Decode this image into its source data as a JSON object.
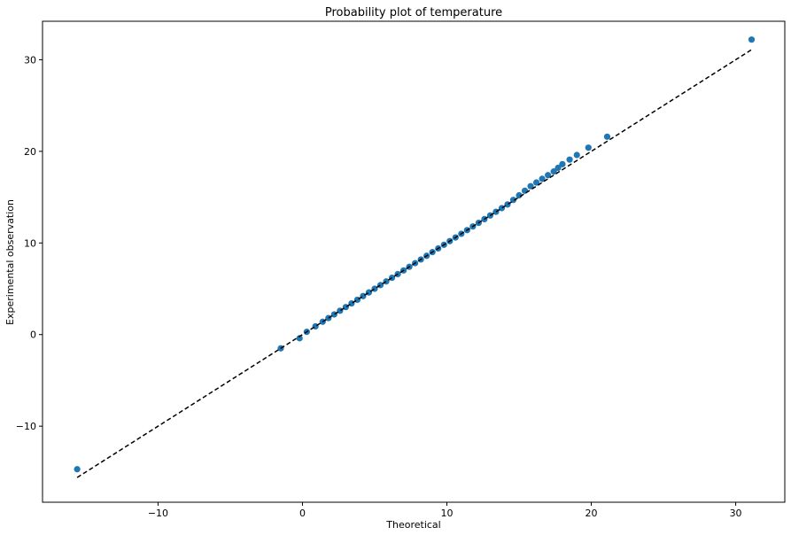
{
  "chart_data": {
    "type": "scatter",
    "title": "Probability plot of temperature",
    "xlabel": "Theoretical",
    "ylabel": "Experimental observation",
    "xlim": [
      -18.0,
      33.4
    ],
    "ylim": [
      -18.3,
      34.2
    ],
    "xticks": [
      -10,
      0,
      10,
      20,
      30
    ],
    "yticks": [
      -10,
      0,
      10,
      20,
      30
    ],
    "xtick_labels": [
      "−10",
      "0",
      "10",
      "20",
      "30"
    ],
    "ytick_labels": [
      "−10",
      "0",
      "10",
      "20",
      "30"
    ],
    "grid": false,
    "legend": false,
    "point_color": "#1f77b4",
    "line_color": "#000000",
    "reference_line": {
      "x": [
        -15.6,
        31.2
      ],
      "y": [
        -15.6,
        31.2
      ],
      "style": "dashed"
    },
    "series": [
      {
        "x": [
          -15.6,
          -1.5,
          -0.2,
          0.3,
          0.9,
          1.4,
          1.8,
          2.2,
          2.6,
          3.0,
          3.4,
          3.8,
          4.2,
          4.6,
          5.0,
          5.4,
          5.8,
          6.2,
          6.6,
          7.0,
          7.4,
          7.8,
          8.2,
          8.6,
          9.0,
          9.4,
          9.8,
          10.2,
          10.6,
          11.0,
          11.4,
          11.8,
          12.2,
          12.6,
          13.0,
          13.4,
          13.8,
          14.2,
          14.6,
          15.0,
          15.4,
          15.8,
          16.2,
          16.6,
          17.0,
          17.4,
          17.7,
          18.0,
          18.5,
          19.0,
          19.8,
          21.1,
          31.1
        ],
        "y": [
          -14.7,
          -1.5,
          -0.4,
          0.3,
          0.9,
          1.4,
          1.8,
          2.2,
          2.6,
          3.0,
          3.4,
          3.8,
          4.2,
          4.6,
          5.0,
          5.4,
          5.8,
          6.2,
          6.6,
          7.0,
          7.4,
          7.8,
          8.2,
          8.6,
          9.0,
          9.4,
          9.8,
          10.2,
          10.6,
          11.0,
          11.4,
          11.8,
          12.2,
          12.6,
          13.0,
          13.4,
          13.8,
          14.2,
          14.7,
          15.2,
          15.7,
          16.2,
          16.6,
          17.0,
          17.4,
          17.8,
          18.2,
          18.6,
          19.1,
          19.6,
          20.4,
          21.6,
          32.2
        ]
      }
    ]
  }
}
